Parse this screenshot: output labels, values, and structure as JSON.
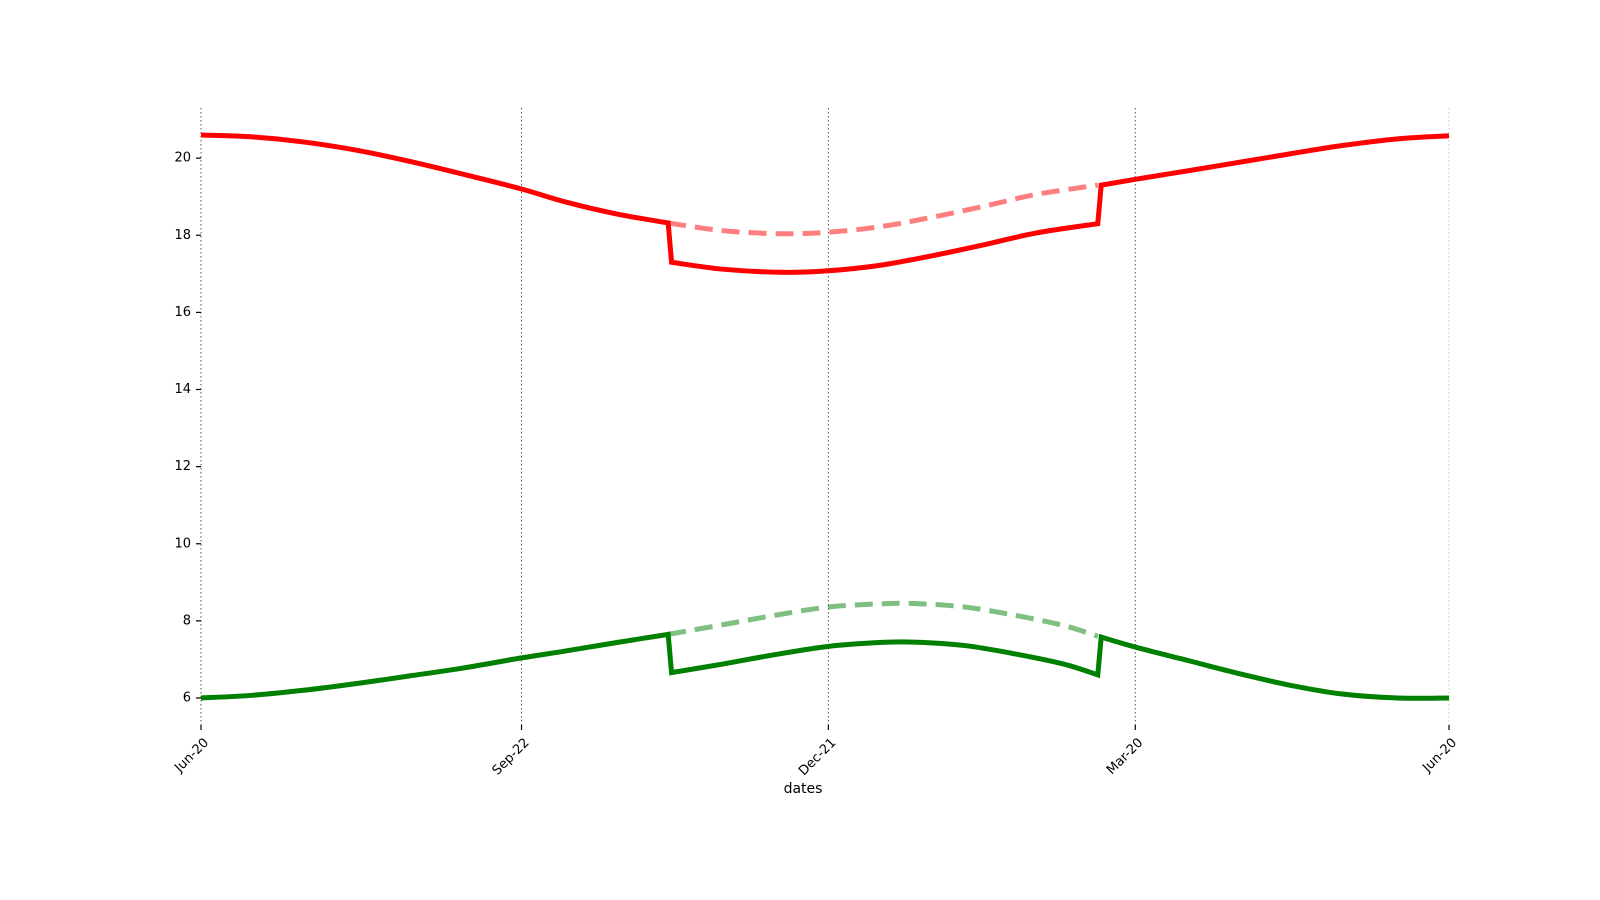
{
  "chart_data": {
    "type": "line",
    "title": "",
    "xlabel": "dates",
    "ylabel": "",
    "xlim": [
      "2023-06-20",
      "2024-06-20"
    ],
    "ylim": [
      5.3,
      21.3
    ],
    "x_ticks": [
      {
        "date": "2023-06-20",
        "label": "Jun-20"
      },
      {
        "date": "2023-09-22",
        "label": "Sep-22"
      },
      {
        "date": "2023-12-21",
        "label": "Dec-21"
      },
      {
        "date": "2024-03-20",
        "label": "Mar-20"
      },
      {
        "date": "2024-06-20",
        "label": "Jun-20"
      }
    ],
    "y_ticks": [
      6,
      8,
      10,
      12,
      14,
      16,
      18,
      20
    ],
    "grid": {
      "x": true,
      "y": false
    },
    "series": [
      {
        "style": "solid",
        "color": "#ff0000",
        "opacity": 1,
        "points": [
          {
            "date": "2023-06-20",
            "value": 20.6
          },
          {
            "date": "2023-07-05",
            "value": 20.55
          },
          {
            "date": "2023-07-20",
            "value": 20.42
          },
          {
            "date": "2023-08-05",
            "value": 20.2
          },
          {
            "date": "2023-08-20",
            "value": 19.92
          },
          {
            "date": "2023-09-05",
            "value": 19.58
          },
          {
            "date": "2023-09-22",
            "value": 19.2
          },
          {
            "date": "2023-10-05",
            "value": 18.86
          },
          {
            "date": "2023-10-20",
            "value": 18.55
          },
          {
            "date": "2023-11-04",
            "value": 18.32
          },
          {
            "date": "2023-11-05",
            "value": 17.3
          },
          {
            "date": "2023-11-20",
            "value": 17.12
          },
          {
            "date": "2023-12-07",
            "value": 17.04
          },
          {
            "date": "2023-12-21",
            "value": 17.08
          },
          {
            "date": "2024-01-05",
            "value": 17.22
          },
          {
            "date": "2024-01-20",
            "value": 17.46
          },
          {
            "date": "2024-02-05",
            "value": 17.76
          },
          {
            "date": "2024-02-20",
            "value": 18.06
          },
          {
            "date": "2024-03-09",
            "value": 18.3
          },
          {
            "date": "2024-03-10",
            "value": 19.3
          },
          {
            "date": "2024-03-20",
            "value": 19.45
          },
          {
            "date": "2024-04-05",
            "value": 19.68
          },
          {
            "date": "2024-04-20",
            "value": 19.9
          },
          {
            "date": "2024-05-05",
            "value": 20.12
          },
          {
            "date": "2024-05-20",
            "value": 20.33
          },
          {
            "date": "2024-06-05",
            "value": 20.5
          },
          {
            "date": "2024-06-20",
            "value": 20.58
          }
        ]
      },
      {
        "style": "dashed",
        "color": "#ff0000",
        "opacity": 0.5,
        "points": [
          {
            "date": "2023-11-04",
            "value": 18.32
          },
          {
            "date": "2023-11-20",
            "value": 18.12
          },
          {
            "date": "2023-12-07",
            "value": 18.04
          },
          {
            "date": "2023-12-21",
            "value": 18.08
          },
          {
            "date": "2024-01-05",
            "value": 18.22
          },
          {
            "date": "2024-01-20",
            "value": 18.46
          },
          {
            "date": "2024-02-05",
            "value": 18.76
          },
          {
            "date": "2024-02-20",
            "value": 19.06
          },
          {
            "date": "2024-03-09",
            "value": 19.3
          }
        ]
      },
      {
        "style": "solid",
        "color": "#008000",
        "opacity": 1,
        "points": [
          {
            "date": "2023-06-20",
            "value": 6.0
          },
          {
            "date": "2023-07-05",
            "value": 6.07
          },
          {
            "date": "2023-07-20",
            "value": 6.2
          },
          {
            "date": "2023-08-05",
            "value": 6.38
          },
          {
            "date": "2023-08-20",
            "value": 6.57
          },
          {
            "date": "2023-09-05",
            "value": 6.78
          },
          {
            "date": "2023-09-22",
            "value": 7.04
          },
          {
            "date": "2023-10-05",
            "value": 7.22
          },
          {
            "date": "2023-10-20",
            "value": 7.44
          },
          {
            "date": "2023-11-04",
            "value": 7.65
          },
          {
            "date": "2023-11-05",
            "value": 6.66
          },
          {
            "date": "2023-11-20",
            "value": 6.88
          },
          {
            "date": "2023-12-05",
            "value": 7.12
          },
          {
            "date": "2023-12-21",
            "value": 7.34
          },
          {
            "date": "2024-01-05",
            "value": 7.44
          },
          {
            "date": "2024-01-15",
            "value": 7.45
          },
          {
            "date": "2024-01-30",
            "value": 7.36
          },
          {
            "date": "2024-02-14",
            "value": 7.14
          },
          {
            "date": "2024-02-28",
            "value": 6.88
          },
          {
            "date": "2024-03-09",
            "value": 6.6
          },
          {
            "date": "2024-03-10",
            "value": 7.58
          },
          {
            "date": "2024-03-20",
            "value": 7.32
          },
          {
            "date": "2024-04-05",
            "value": 6.96
          },
          {
            "date": "2024-04-20",
            "value": 6.62
          },
          {
            "date": "2024-05-05",
            "value": 6.32
          },
          {
            "date": "2024-05-20",
            "value": 6.1
          },
          {
            "date": "2024-06-05",
            "value": 6.0
          },
          {
            "date": "2024-06-20",
            "value": 6.0
          }
        ]
      },
      {
        "style": "dashed",
        "color": "#008000",
        "opacity": 0.5,
        "points": [
          {
            "date": "2023-11-04",
            "value": 7.65
          },
          {
            "date": "2023-11-20",
            "value": 7.9
          },
          {
            "date": "2023-12-05",
            "value": 8.14
          },
          {
            "date": "2023-12-21",
            "value": 8.36
          },
          {
            "date": "2024-01-05",
            "value": 8.44
          },
          {
            "date": "2024-01-15",
            "value": 8.45
          },
          {
            "date": "2024-01-30",
            "value": 8.36
          },
          {
            "date": "2024-02-14",
            "value": 8.14
          },
          {
            "date": "2024-02-28",
            "value": 7.88
          },
          {
            "date": "2024-03-09",
            "value": 7.6
          }
        ]
      }
    ]
  }
}
